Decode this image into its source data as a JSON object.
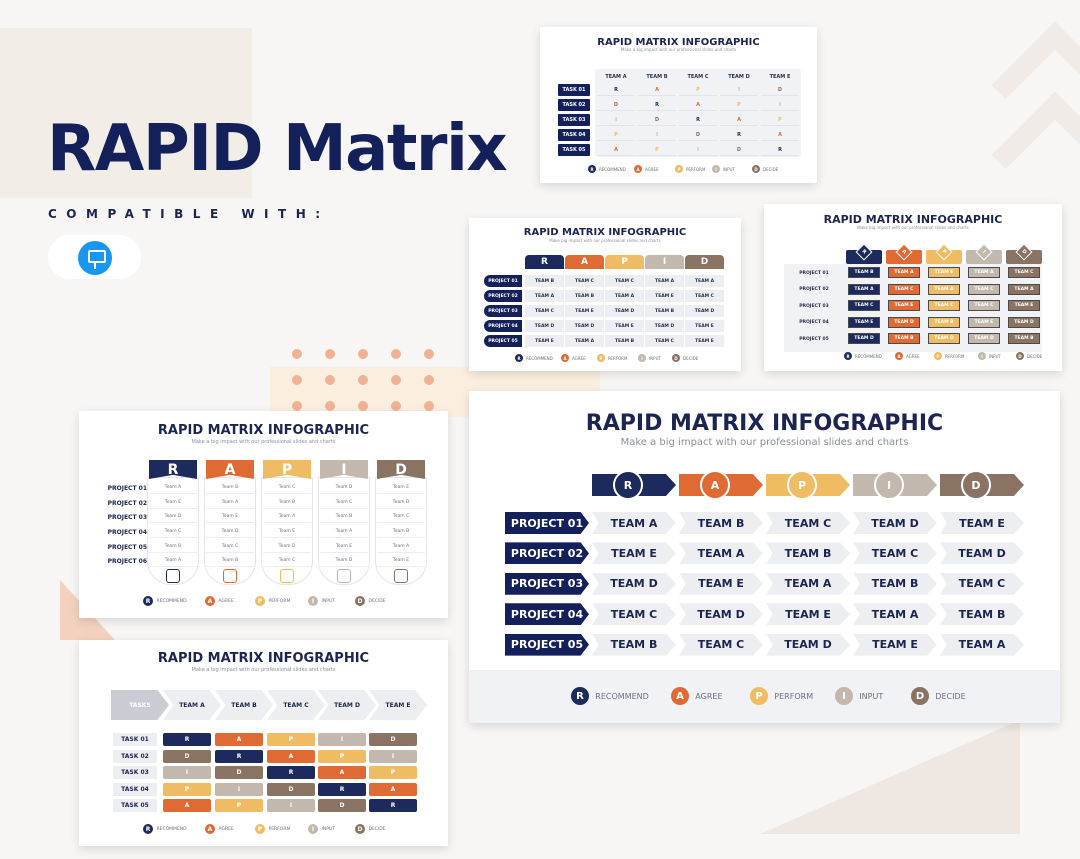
{
  "hero": {
    "title": "RAPID Matrix",
    "compatible": "COMPATIBLE WITH:",
    "app_icon": "keynote-icon"
  },
  "colors": {
    "R": "#1c2a5c",
    "A": "#e06a33",
    "P": "#efbb63",
    "I": "#c2b8ae",
    "D": "#8a7363",
    "navy": "#13205a"
  },
  "common": {
    "title": "RAPID MATRIX INFOGRAPHIC",
    "subtitle_a": "Make a big impact with our professional slides and charts",
    "subtitle_b": "Make big impact with our professional slides and charts",
    "letters": [
      "R",
      "A",
      "P",
      "I",
      "D"
    ],
    "legend_upper": [
      "RECOMMEND",
      "AGREE",
      "PERFORM",
      "INPUT",
      "DECIDE"
    ],
    "legend_lower": [
      "RECOMMEND",
      "AGREE",
      "PERFORM",
      "INPUT",
      "DECIDE"
    ]
  },
  "slide1": {
    "teams": [
      "TEAM A",
      "TEAM B",
      "TEAM C",
      "TEAM D",
      "TEAM E"
    ],
    "tasks": [
      "TASK 01",
      "TASK 02",
      "TASK 03",
      "TASK 04",
      "TASK 05"
    ],
    "grid": [
      [
        "R",
        "A",
        "P",
        "I",
        "D"
      ],
      [
        "D",
        "R",
        "A",
        "P",
        "I"
      ],
      [
        "I",
        "D",
        "R",
        "A",
        "P"
      ],
      [
        "P",
        "I",
        "D",
        "R",
        "A"
      ],
      [
        "A",
        "P",
        "I",
        "D",
        "R"
      ]
    ]
  },
  "slide2": {
    "projects": [
      "PROJECT 01",
      "PROJECT 02",
      "PROJECT 03",
      "PROJECT 04",
      "PROJECT 05"
    ],
    "grid": [
      [
        "TEAM B",
        "TEAM C",
        "TEAM C",
        "TEAM A",
        "TEAM A"
      ],
      [
        "TEAM A",
        "TEAM B",
        "TEAM A",
        "TEAM E",
        "TEAM C"
      ],
      [
        "TEAM C",
        "TEAM E",
        "TEAM D",
        "TEAM B",
        "TEAM D"
      ],
      [
        "TEAM D",
        "TEAM D",
        "TEAM E",
        "TEAM D",
        "TEAM E"
      ],
      [
        "TEAM E",
        "TEAM A",
        "TEAM B",
        "TEAM C",
        "TEAM E"
      ]
    ]
  },
  "slide3": {
    "projects": [
      "PROJECT 01",
      "PROJECT 02",
      "PROJECT 03",
      "PROJECT 04",
      "PROJECT 05"
    ],
    "grid": [
      [
        "TEAM B",
        "TEAM A",
        "TEAM E",
        "TEAM A",
        "TEAM C"
      ],
      [
        "TEAM A",
        "TEAM C",
        "TEAM A",
        "TEAM C",
        "TEAM A"
      ],
      [
        "TEAM C",
        "TEAM E",
        "TEAM C",
        "TEAM C",
        "TEAM E"
      ],
      [
        "TEAM E",
        "TEAM D",
        "TEAM B",
        "TEAM E",
        "TEAM D"
      ],
      [
        "TEAM D",
        "TEAM B",
        "TEAM D",
        "TEAM D",
        "TEAM B"
      ]
    ]
  },
  "slide4": {
    "projects": [
      "PROJECT 01",
      "PROJECT 02",
      "PROJECT 03",
      "PROJECT 04",
      "PROJECT 05",
      "PROJECT 06"
    ],
    "grid": [
      [
        "Team A",
        "Team B",
        "Team C",
        "Team D",
        "Team E"
      ],
      [
        "Team E",
        "Team A",
        "Team B",
        "Team C",
        "Team D"
      ],
      [
        "Team D",
        "Team E",
        "Team A",
        "Team B",
        "Team C"
      ],
      [
        "Team C",
        "Team D",
        "Team E",
        "Team A",
        "Team B"
      ],
      [
        "Team B",
        "Team C",
        "Team D",
        "Team E",
        "Team A"
      ],
      [
        "Team A",
        "Team B",
        "Team C",
        "Team D",
        "Team E"
      ]
    ],
    "icons": [
      "folder-icon",
      "coin-icon",
      "checklist-icon",
      "people-icon",
      "gears-icon"
    ]
  },
  "slide5": {
    "projects": [
      "PROJECT 01",
      "PROJECT 02",
      "PROJECT 03",
      "PROJECT 04",
      "PROJECT 05"
    ],
    "grid": [
      [
        "TEAM A",
        "TEAM B",
        "TEAM C",
        "TEAM D",
        "TEAM E"
      ],
      [
        "TEAM E",
        "TEAM A",
        "TEAM B",
        "TEAM C",
        "TEAM D"
      ],
      [
        "TEAM D",
        "TEAM E",
        "TEAM A",
        "TEAM B",
        "TEAM C"
      ],
      [
        "TEAM C",
        "TEAM D",
        "TEAM E",
        "TEAM A",
        "TEAM B"
      ],
      [
        "TEAM B",
        "TEAM C",
        "TEAM D",
        "TEAM E",
        "TEAM A"
      ]
    ]
  },
  "slide6": {
    "header": "TASKS",
    "teams": [
      "TEAM A",
      "TEAM B",
      "TEAM C",
      "TEAM D",
      "TEAM E"
    ],
    "tasks": [
      "TASK 01",
      "TASK 02",
      "TASK 03",
      "TASK 04",
      "TASK 05"
    ],
    "grid": [
      [
        "R",
        "A",
        "P",
        "I",
        "D"
      ],
      [
        "D",
        "R",
        "A",
        "P",
        "I"
      ],
      [
        "I",
        "D",
        "R",
        "A",
        "P"
      ],
      [
        "P",
        "I",
        "D",
        "R",
        "A"
      ],
      [
        "A",
        "P",
        "I",
        "D",
        "R"
      ]
    ]
  }
}
